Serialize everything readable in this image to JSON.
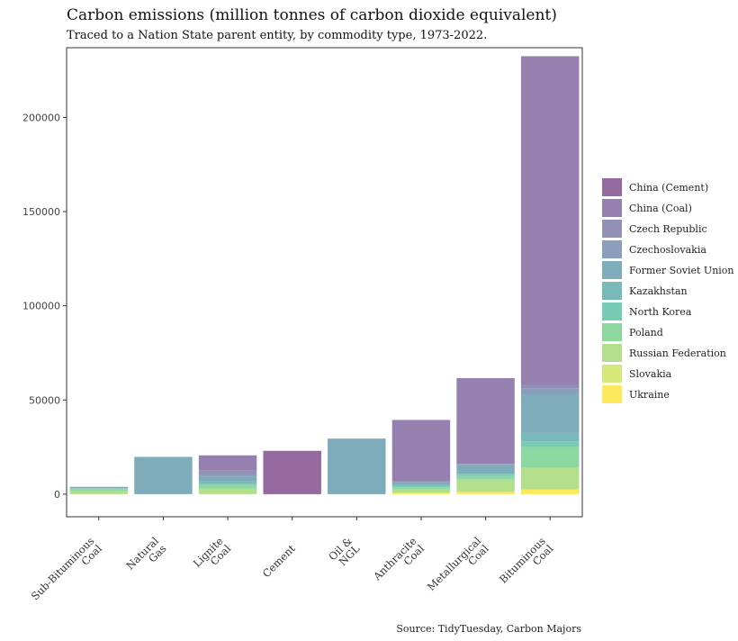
{
  "chart_data": {
    "type": "bar",
    "stacked": true,
    "title": "Carbon emissions (million tonnes of carbon dioxide equivalent)",
    "subtitle": "Traced to a Nation State parent entity, by commodity type, 1973-2022.",
    "caption": "Source: TidyTuesday, Carbon Majors",
    "xlabel": "",
    "ylabel": "",
    "ylim": [
      -12000,
      237000
    ],
    "yticks": [
      0,
      50000,
      100000,
      150000,
      200000
    ],
    "grid": false,
    "legend_position": "right",
    "categories": [
      [
        "Sub-Bituminous",
        "Coal"
      ],
      [
        "Natural",
        "Gas"
      ],
      [
        "Lignite",
        "Coal"
      ],
      [
        "Cement"
      ],
      [
        "Oil &",
        "NGL"
      ],
      [
        "Anthracite",
        "Coal"
      ],
      [
        "Metallurgical",
        "Coal"
      ],
      [
        "Bituminous",
        "Coal"
      ]
    ],
    "series": [
      {
        "name": "Ukraine",
        "color": "#fde95c",
        "values": [
          0,
          0,
          0,
          0,
          0,
          700,
          1200,
          2500
        ]
      },
      {
        "name": "Slovakia",
        "color": "#d5e87a",
        "values": [
          0,
          0,
          0,
          0,
          0,
          0,
          0,
          0
        ]
      },
      {
        "name": "Russian Federation",
        "color": "#b3df8c",
        "values": [
          1500,
          0,
          3000,
          0,
          0,
          1800,
          6500,
          11500
        ]
      },
      {
        "name": "Poland",
        "color": "#8cd8a0",
        "values": [
          1200,
          0,
          2000,
          0,
          0,
          1200,
          2000,
          11000
        ]
      },
      {
        "name": "North Korea",
        "color": "#77cbb3",
        "values": [
          300,
          0,
          700,
          0,
          0,
          800,
          1200,
          3000
        ]
      },
      {
        "name": "Kazakhstan",
        "color": "#78b9b9",
        "values": [
          200,
          0,
          1000,
          0,
          0,
          500,
          0,
          4500
        ]
      },
      {
        "name": "Former Soviet Union",
        "color": "#7eacbb",
        "values": [
          700,
          19800,
          2500,
          0,
          29500,
          1200,
          4500,
          20500
        ]
      },
      {
        "name": "Czechoslovakia",
        "color": "#8a9fbb",
        "values": [
          0,
          0,
          1500,
          0,
          0,
          500,
          500,
          3000
        ]
      },
      {
        "name": "Czech Republic",
        "color": "#9390b7",
        "values": [
          0,
          0,
          1800,
          0,
          0,
          200,
          200,
          2000
        ]
      },
      {
        "name": "China (Coal)",
        "color": "#9680b0",
        "values": [
          0,
          0,
          8100,
          0,
          0,
          32500,
          45500,
          174500
        ]
      },
      {
        "name": "China (Cement)",
        "color": "#93699e",
        "values": [
          0,
          0,
          0,
          23000,
          0,
          0,
          0,
          0
        ]
      }
    ],
    "legend_order": [
      "China (Cement)",
      "China (Coal)",
      "Czech Republic",
      "Czechoslovakia",
      "Former Soviet Union",
      "Kazakhstan",
      "North Korea",
      "Poland",
      "Russian Federation",
      "Slovakia",
      "Ukraine"
    ]
  }
}
